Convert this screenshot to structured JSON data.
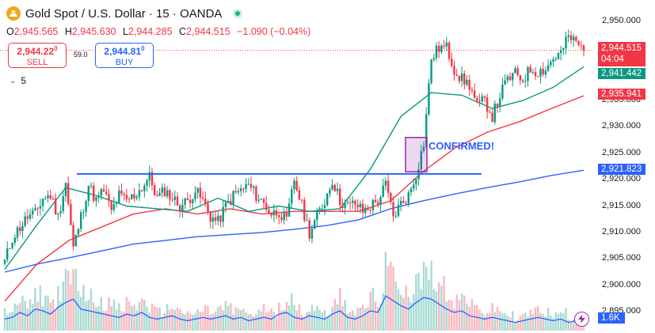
{
  "header": {
    "title": "Gold Spot / U.S. Dollar · 15 · OANDA",
    "symbol_icon": "gold-coin-icon",
    "ohlc": {
      "o_label": "O",
      "o": "2,945.565",
      "h_label": "H",
      "h": "2,945.630",
      "l_label": "L",
      "l": "2,944.285",
      "c_label": "C",
      "c": "2,944.515",
      "change": "−1.090 (−0.04%)"
    }
  },
  "trade": {
    "sell_price_main": "2,944.22",
    "sell_price_sup": "0",
    "sell_label": "SELL",
    "spread": "59.0",
    "buy_price_main": "2,944.81",
    "buy_price_sup": "0",
    "buy_label": "BUY"
  },
  "indicators": {
    "count": "5"
  },
  "price_axis": {
    "ticks": [
      "2,950.000",
      "2,945.000",
      "2,940.000",
      "2,935.000",
      "2,930.000",
      "2,925.000",
      "2,920.000",
      "2,915.000",
      "2,910.000",
      "2,905.000",
      "2,900.000",
      "2,895.000"
    ],
    "current_price": "2,944.515",
    "countdown": "04:04",
    "ma_green": "2,941.442",
    "ma_red": "2,935.941",
    "ma_blue": "2,921.823",
    "volume": "1.6K"
  },
  "annotations": {
    "confirmed": "CONFIRMED!"
  },
  "chart_data": {
    "type": "candlestick",
    "ylim": [
      2893,
      2953
    ],
    "grid": false,
    "colors": {
      "up": "#089981",
      "down": "#f23645",
      "ma_fast": "#089981",
      "ma_mid": "#f23645",
      "ma_slow": "#2962ff",
      "level": "#2962ff",
      "highlight": "#9c27b0"
    },
    "close_path": [
      2904.5,
      2909,
      2911,
      2913,
      2913.5,
      2916.5,
      2917,
      2913,
      2919.5,
      2907,
      2913,
      2919,
      2916,
      2918,
      2914,
      2917,
      2916,
      2917,
      2918.5,
      2920.5,
      2916.5,
      2918,
      2916.5,
      2915,
      2916,
      2918,
      2916,
      2913,
      2912,
      2915,
      2917,
      2918,
      2919,
      2917,
      2915.5,
      2913.5,
      2914,
      2912,
      2920,
      2915,
      2910,
      2913,
      2916,
      2920,
      2916,
      2915,
      2915.5,
      2914,
      2915,
      2916,
      2919,
      2913,
      2915.5,
      2917,
      2921,
      2927,
      2943,
      2945,
      2945,
      2941,
      2939,
      2938,
      2934,
      2935,
      2932,
      2936,
      2939,
      2940,
      2939,
      2941,
      2940.5,
      2941,
      2943,
      2944,
      2947,
      2946,
      2944.5
    ],
    "horizontal_level": 2921.1,
    "highlight_box": {
      "high": 2928.0,
      "low": 2921.5
    },
    "ma_fast": [
      2903,
      2911,
      2918.5,
      2917,
      2915,
      2914.5,
      2914,
      2916.5,
      2914,
      2915,
      2914,
      2914.5,
      2922,
      2932,
      2936.5,
      2936,
      2933.5,
      2935,
      2937.5,
      2941.4
    ],
    "ma_mid": [
      2897,
      2904,
      2908.5,
      2911,
      2913.5,
      2914.5,
      2913.5,
      2914.5,
      2913.5,
      2914,
      2914,
      2914,
      2916,
      2921.5,
      2926,
      2929,
      2931,
      2933.5,
      2935.9
    ],
    "ma_slow": [
      2902.5,
      2904,
      2905.2,
      2906.5,
      2907.8,
      2908.5,
      2909.2,
      2909.6,
      2910,
      2910.6,
      2911.3,
      2912.4,
      2914.5,
      2916,
      2917.3,
      2918.5,
      2919.6,
      2920.8,
      2921.8
    ],
    "volume_profile": [
      0.3,
      0.35,
      0.5,
      0.4,
      0.6,
      0.55,
      0.45,
      0.65,
      0.8,
      0.9,
      0.6,
      0.55,
      0.5,
      0.45,
      0.4,
      0.35,
      0.45,
      0.4,
      0.5,
      0.35,
      0.3,
      0.35,
      0.4,
      0.3,
      0.25,
      0.3,
      0.35,
      0.3,
      0.35,
      0.4,
      0.3,
      0.35,
      0.25,
      0.3,
      0.35,
      0.3,
      0.45,
      0.5,
      0.35,
      0.3,
      0.4,
      0.35,
      0.3,
      0.45,
      0.55,
      0.35,
      0.3,
      0.4,
      0.55,
      0.5,
      1.0,
      0.85,
      0.7,
      0.6,
      0.8,
      0.95,
      0.9,
      0.75,
      0.6,
      0.5,
      0.55,
      0.4,
      0.35,
      0.3,
      0.35,
      0.3,
      0.25,
      0.2,
      0.25,
      0.3,
      0.35,
      0.3,
      0.25,
      0.3,
      0.2,
      0.25,
      0.3
    ]
  }
}
